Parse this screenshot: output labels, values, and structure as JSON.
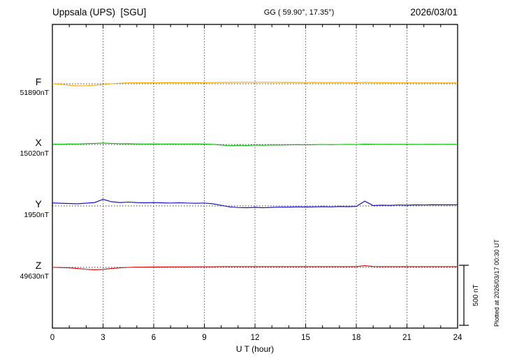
{
  "header": {
    "station": "Uppsala (UPS)  [SGU]",
    "coords": "GG ( 59.90°, 17.35°)",
    "date": "2026/03/01"
  },
  "footer": {
    "plotted_at": "Plotted at 2026/03/17 00:30 UT"
  },
  "scale_bar": {
    "label": "500 nT",
    "nT": 500
  },
  "chart_data": {
    "type": "line",
    "title": "Magnetogram Uppsala (UPS) [SGU] 2026/03/01",
    "xlabel": "U T (hour)",
    "x_range": [
      0,
      24
    ],
    "x_ticks": [
      0,
      3,
      6,
      9,
      12,
      15,
      18,
      21,
      24
    ],
    "x_step_hours": 0.5,
    "grid": "dotted vertical lines every 3 h; dotted horizontal baseline per component",
    "legend_position": "left labels per trace",
    "y_unit": "nT offset from component baseline",
    "series": [
      {
        "name": "F",
        "baseline_label": "51890nT",
        "baseline_nT": 51890,
        "color": "#ffa500",
        "values": [
          0,
          -4,
          -12,
          -18,
          -16,
          -12,
          -6,
          0,
          5,
          8,
          8,
          9,
          8,
          9,
          10,
          9,
          9,
          10,
          9,
          10,
          11,
          11,
          12,
          13,
          12,
          13,
          12,
          11,
          12,
          11,
          10,
          11,
          10,
          10,
          11,
          10,
          9,
          12,
          10,
          9,
          9,
          8,
          8,
          8,
          7,
          8,
          7,
          7,
          7
        ]
      },
      {
        "name": "X",
        "baseline_label": "15020nT",
        "baseline_nT": 15020,
        "color": "#00c000",
        "values": [
          3,
          2,
          5,
          4,
          7,
          9,
          12,
          9,
          6,
          7,
          5,
          4,
          5,
          4,
          5,
          4,
          4,
          5,
          4,
          1,
          -5,
          -10,
          -7,
          -9,
          -5,
          -7,
          -4,
          -5,
          -3,
          -2,
          -3,
          -2,
          0,
          -2,
          0,
          1,
          0,
          3,
          2,
          1,
          2,
          1,
          2,
          1,
          1,
          2,
          1,
          2,
          1
        ]
      },
      {
        "name": "Y",
        "baseline_label": "1950nT",
        "baseline_nT": 1950,
        "color": "#0000cd",
        "values": [
          25,
          22,
          20,
          18,
          23,
          28,
          55,
          35,
          28,
          32,
          28,
          26,
          28,
          26,
          24,
          26,
          24,
          22,
          24,
          18,
          5,
          -8,
          -13,
          -15,
          -12,
          -15,
          -12,
          -10,
          -10,
          -8,
          -9,
          -8,
          -6,
          -8,
          -5,
          -6,
          -4,
          40,
          3,
          6,
          5,
          8,
          6,
          9,
          8,
          10,
          9,
          9,
          10
        ]
      },
      {
        "name": "Z",
        "baseline_label": "49630nT",
        "baseline_nT": 49630,
        "color": "#dd0000",
        "values": [
          0,
          -2,
          -4,
          -9,
          -16,
          -20,
          -17,
          -9,
          -4,
          0,
          2,
          2,
          3,
          3,
          4,
          4,
          4,
          5,
          5,
          5,
          6,
          6,
          6,
          6,
          6,
          6,
          6,
          6,
          6,
          6,
          6,
          6,
          6,
          6,
          6,
          6,
          6,
          14,
          7,
          6,
          6,
          6,
          6,
          6,
          6,
          6,
          6,
          6,
          6
        ]
      }
    ]
  }
}
